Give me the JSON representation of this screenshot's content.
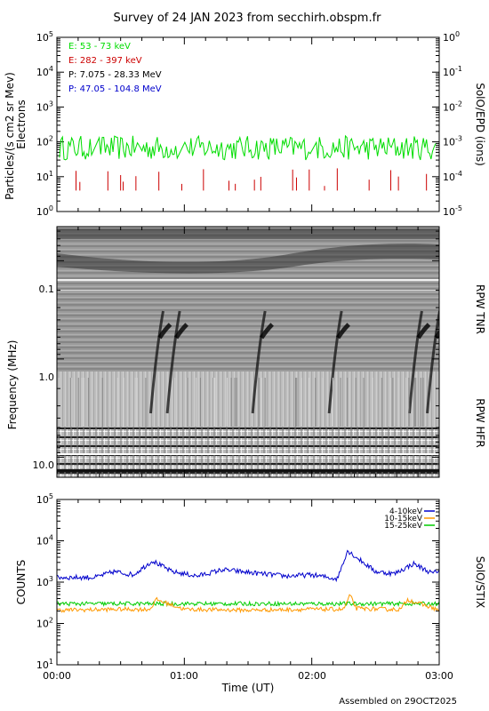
{
  "title": "Survey of 24 JAN 2023 from secchirh.obspm.fr",
  "footer": "Assembled on 29OCT2025",
  "time_axis": {
    "label": "Time (UT)",
    "ticks": [
      "00:00",
      "01:00",
      "02:00",
      "03:00"
    ],
    "range_hours": [
      0,
      3
    ]
  },
  "chart_data": [
    {
      "type": "line",
      "panel": "SolO/EPD",
      "ylabel": "Particles/(s cm2 sr Mev)",
      "ylabel2": "Electrons",
      "right_label": "SolO/EPD (ions)",
      "yscale": "log",
      "ylim": [
        1,
        100000
      ],
      "yticks": [
        "10^0",
        "10^1",
        "10^2",
        "10^3",
        "10^4",
        "10^5"
      ],
      "y2lim": [
        1e-05,
        1
      ],
      "y2ticks": [
        "10^-5",
        "10^-4",
        "10^-3",
        "10^-2",
        "10^-1",
        "10^0"
      ],
      "legend_position": "top-left",
      "series": [
        {
          "name": "E: 53 - 73 keV",
          "color": "#00dd00",
          "typical": 60,
          "range": [
            30,
            150
          ]
        },
        {
          "name": "E: 282 - 397 keV",
          "color": "#cc0000",
          "typical": 6,
          "range": [
            4,
            20
          ]
        },
        {
          "name": "P: 7.075 - 28.33 MeV",
          "color": "#000000"
        },
        {
          "name": "P: 47.05 - 104.8 MeV",
          "color": "#0000cc"
        }
      ]
    },
    {
      "type": "heatmap",
      "panel": "RPW",
      "ylabel": "Frequency (MHz)",
      "yscale": "log",
      "yticks": [
        "0.1",
        "1.0",
        "10.0"
      ],
      "ylim": [
        0.045,
        16
      ],
      "right_label_top": "RPW TNR",
      "right_label_bottom": "RPW HFR",
      "bursts_utc_hours": [
        0.75,
        0.88,
        1.55,
        2.15,
        2.78,
        2.92
      ]
    },
    {
      "type": "line",
      "panel": "SolO/STIX",
      "ylabel": "COUNTS",
      "right_label": "SolO/STIX",
      "yscale": "log",
      "ylim": [
        10,
        100000
      ],
      "yticks": [
        "10^1",
        "10^2",
        "10^3",
        "10^4",
        "10^5"
      ],
      "legend_position": "top-right",
      "series": [
        {
          "name": "4-10keV",
          "color": "#0000cc",
          "x": [
            0.0,
            0.3,
            0.45,
            0.6,
            0.75,
            0.9,
            1.1,
            1.3,
            1.6,
            1.8,
            2.0,
            2.2,
            2.28,
            2.35,
            2.5,
            2.65,
            2.8,
            2.95,
            3.0
          ],
          "values": [
            1300,
            1300,
            1800,
            1500,
            3300,
            1800,
            1400,
            2000,
            1600,
            1400,
            1500,
            1200,
            5800,
            4000,
            1800,
            1600,
            2800,
            1600,
            2000
          ]
        },
        {
          "name": "10-15keV",
          "color": "#ff9900",
          "x": [
            0.0,
            0.5,
            0.73,
            0.78,
            1.0,
            1.5,
            2.0,
            2.25,
            2.3,
            2.35,
            2.6,
            2.7,
            2.75,
            3.0
          ],
          "values": [
            210,
            220,
            220,
            380,
            220,
            210,
            220,
            220,
            480,
            230,
            220,
            220,
            380,
            210
          ]
        },
        {
          "name": "15-25keV",
          "color": "#00cc00",
          "x": [
            0.0,
            1.0,
            2.0,
            3.0
          ],
          "values": [
            300,
            300,
            300,
            300
          ]
        }
      ]
    }
  ]
}
